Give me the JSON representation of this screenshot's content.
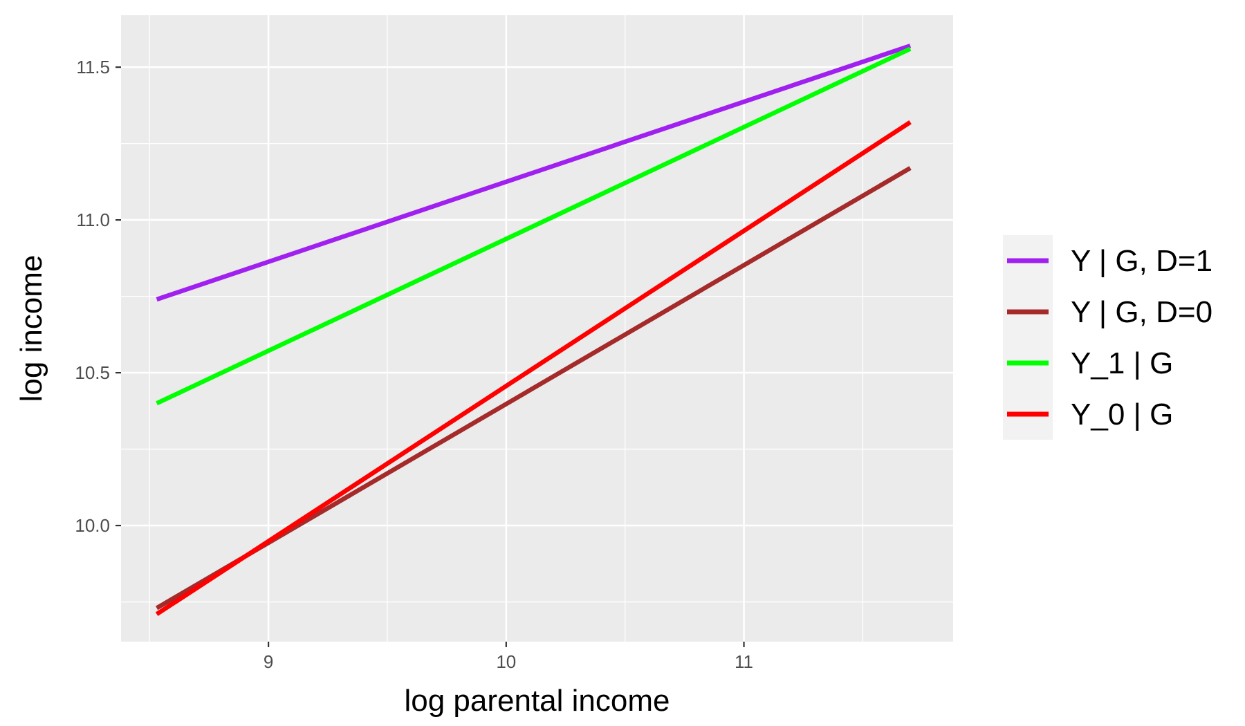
{
  "chart_data": {
    "type": "line",
    "title": "",
    "xlabel": "log parental income",
    "ylabel": "log income",
    "xlim": [
      8.38,
      11.88
    ],
    "ylim": [
      9.62,
      11.67
    ],
    "x_ticks": [
      9,
      10,
      11
    ],
    "x_tick_labels": [
      "9",
      "10",
      "11"
    ],
    "x_minor_ticks": [
      8.5,
      9.5,
      10.5,
      11.5
    ],
    "y_ticks": [
      10.0,
      10.5,
      11.0,
      11.5
    ],
    "y_tick_labels": [
      "10.0",
      "10.5",
      "11.0",
      "11.5"
    ],
    "y_minor_ticks": [
      9.75,
      10.25,
      10.75,
      11.25
    ],
    "grid": true,
    "legend_position": "right",
    "series": [
      {
        "name": "Y | G, D=1",
        "color": "#A020F0",
        "x": [
          8.53,
          11.7
        ],
        "y": [
          10.74,
          11.57
        ]
      },
      {
        "name": "Y | G, D=0",
        "color": "#A52A2A",
        "x": [
          8.53,
          11.7
        ],
        "y": [
          9.73,
          11.17
        ]
      },
      {
        "name": "Y_1 | G",
        "color": "#00FF00",
        "x": [
          8.53,
          11.7
        ],
        "y": [
          10.4,
          11.56
        ]
      },
      {
        "name": "Y_0 | G",
        "color": "#FF0000",
        "x": [
          8.53,
          11.7
        ],
        "y": [
          9.71,
          11.32
        ]
      }
    ],
    "panel_background": "#EBEBEB",
    "grid_color": "#FFFFFF",
    "legend_key_background": "#F2F2F2"
  }
}
